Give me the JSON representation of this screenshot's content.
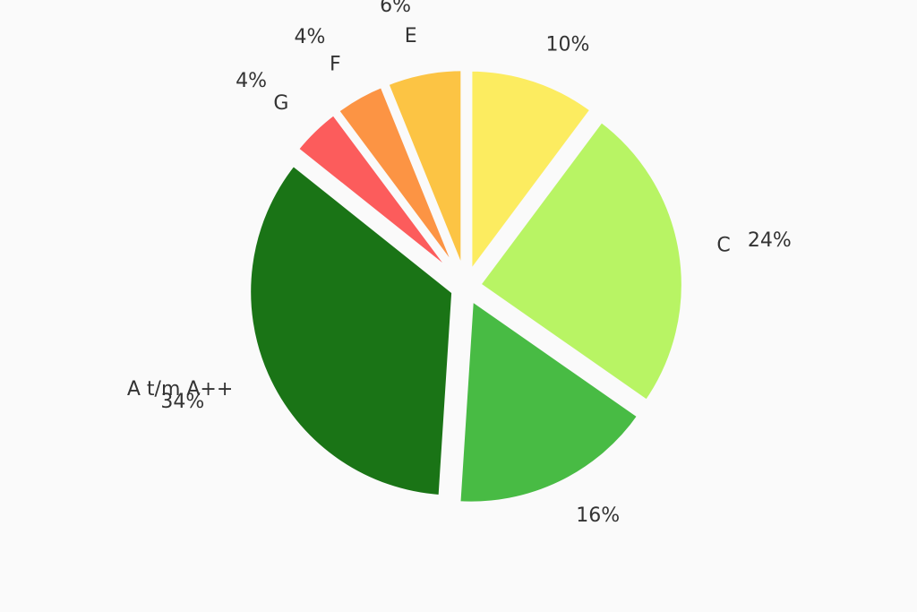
{
  "chart_data": {
    "type": "pie",
    "categories": [
      null,
      "C",
      null,
      "A t/m A++",
      "G",
      "F",
      "E"
    ],
    "values": [
      10,
      24,
      16,
      34,
      4,
      4,
      6
    ],
    "value_labels": [
      "10%",
      "24%",
      "16%",
      "34%",
      "4%",
      "4%",
      "6%"
    ],
    "colors": [
      "#fcec60",
      "#b8f464",
      "#48bb44",
      "#1a7416",
      "#fc5c5c",
      "#fc9444",
      "#fcc444"
    ]
  }
}
